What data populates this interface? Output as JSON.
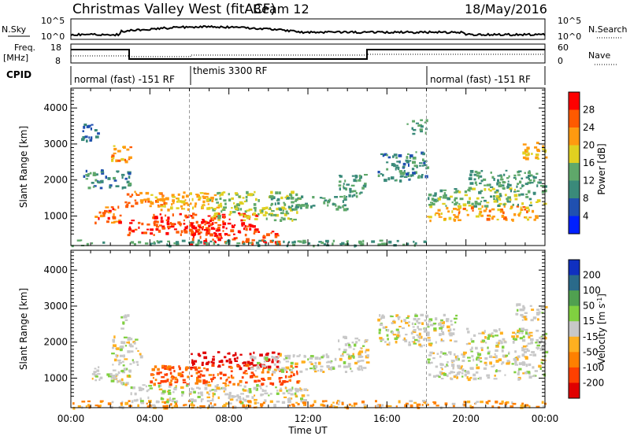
{
  "header": {
    "title": "Christmas Valley West (fitACF)",
    "beam": "Beam 12",
    "date": "18/May/2016"
  },
  "top_panel": {
    "nsky_label": "N.Sky",
    "nsearch_label": "N.Search",
    "noise_ticks": [
      "10^5",
      "10^0"
    ],
    "freq_label_1": "Freq.",
    "freq_label_2": "[MHz]",
    "freq_ticks": [
      "18",
      "8"
    ],
    "nave_label": "Nave",
    "nave_ticks": [
      "60",
      "0"
    ],
    "cpid_label": "CPID",
    "cpid_segments": [
      {
        "label": "normal (fast) -151 RF",
        "start_h": 0,
        "end_h": 6
      },
      {
        "label": "themis 3300 RF",
        "start_h": 6,
        "end_h": 18
      },
      {
        "label": "normal (fast) -151 RF",
        "start_h": 18,
        "end_h": 24
      }
    ]
  },
  "axes": {
    "xlabel": "Time UT",
    "x_ticks": [
      "00:00",
      "04:00",
      "08:00",
      "12:00",
      "16:00",
      "20:00",
      "00:00"
    ],
    "x_tick_hours": [
      0,
      4,
      8,
      12,
      16,
      20,
      24
    ],
    "ylabel": "Slant Range [km]",
    "y_ticks": [
      "1000",
      "2000",
      "3000",
      "4000"
    ],
    "y_tick_values": [
      1000,
      2000,
      3000,
      4000
    ],
    "ylim": [
      180,
      4550
    ],
    "xlim_hours": [
      0,
      24
    ]
  },
  "colorbars": {
    "power": {
      "label": "Power [dB]",
      "ticks": [
        "4",
        "8",
        "12",
        "16",
        "20",
        "24",
        "28"
      ],
      "colors": [
        "#0020ff",
        "#2050b0",
        "#3a8a7a",
        "#5fa86a",
        "#e0d020",
        "#ff9a10",
        "#ff5a00",
        "#ff0000"
      ]
    },
    "velocity": {
      "label": "Velocity [m s-1]",
      "ticks": [
        "200",
        "100",
        "50",
        "15",
        "-15",
        "-50",
        "-100",
        "-200"
      ],
      "colors": [
        "#1030c0",
        "#2a6a8a",
        "#50a050",
        "#80d040",
        "#c8c8c8",
        "#ffb020",
        "#ff8000",
        "#ff4000",
        "#e00000"
      ]
    }
  },
  "chart_data": [
    {
      "type": "heatmap",
      "panel": "power",
      "title": "Christmas Valley West (fitACF) Beam 12",
      "xlabel": "Time UT",
      "ylabel": "Slant Range [km]",
      "x_unit": "hours UT",
      "xlim": [
        0,
        24
      ],
      "ylim": [
        180,
        4550
      ],
      "colorbar_label": "Power [dB]",
      "echo_regions": [
        {
          "t0": 1.2,
          "t1": 2.5,
          "r0": 800,
          "r1": 1350,
          "value_db": 26
        },
        {
          "t0": 2.6,
          "t1": 3.1,
          "r0": 1300,
          "r1": 1700,
          "value_db": 24
        },
        {
          "t0": 3.2,
          "t1": 4.8,
          "r0": 1300,
          "r1": 1700,
          "value_db": 24
        },
        {
          "t0": 2.8,
          "t1": 7.5,
          "r0": 500,
          "r1": 900,
          "value_db": 28
        },
        {
          "t0": 4.0,
          "t1": 9.5,
          "r0": 600,
          "r1": 1100,
          "value_db": 28
        },
        {
          "t0": 6.0,
          "t1": 10.5,
          "r0": 250,
          "r1": 600,
          "value_db": 28
        },
        {
          "t0": 4.0,
          "t1": 7.5,
          "r0": 1200,
          "r1": 1700,
          "value_db": 20
        },
        {
          "t0": 7.0,
          "t1": 11.5,
          "r0": 900,
          "r1": 1700,
          "value_db": 16
        },
        {
          "t0": 10.0,
          "t1": 14.0,
          "r0": 1200,
          "r1": 1600,
          "value_db": 12
        },
        {
          "t0": 13.5,
          "t1": 15.0,
          "r0": 1500,
          "r1": 2200,
          "value_db": 12
        },
        {
          "t0": 15.5,
          "t1": 18.0,
          "r0": 2000,
          "r1": 2800,
          "value_db": 10
        },
        {
          "t0": 17.0,
          "t1": 18.0,
          "r0": 3300,
          "r1": 3700,
          "value_db": 12
        },
        {
          "t0": 18.0,
          "t1": 23.5,
          "r0": 900,
          "r1": 1300,
          "value_db": 22
        },
        {
          "t0": 18.0,
          "t1": 24.0,
          "r0": 1300,
          "r1": 1800,
          "value_db": 14
        },
        {
          "t0": 20.0,
          "t1": 24.0,
          "r0": 1800,
          "r1": 2300,
          "value_db": 12
        },
        {
          "t0": 22.8,
          "t1": 24.0,
          "r0": 2600,
          "r1": 3100,
          "value_db": 20
        },
        {
          "t0": 0.5,
          "t1": 3.0,
          "r0": 1800,
          "r1": 2300,
          "value_db": 10
        },
        {
          "t0": 0.5,
          "t1": 1.5,
          "r0": 3100,
          "r1": 3600,
          "value_db": 8
        },
        {
          "t0": 2.0,
          "t1": 3.0,
          "r0": 2500,
          "r1": 3000,
          "value_db": 22
        },
        {
          "t0": 0.0,
          "t1": 18.0,
          "r0": 200,
          "r1": 350,
          "value_db": 12
        }
      ]
    },
    {
      "type": "heatmap",
      "panel": "velocity",
      "xlabel": "Time UT",
      "ylabel": "Slant Range [km]",
      "x_unit": "hours UT",
      "xlim": [
        0,
        24
      ],
      "ylim": [
        180,
        4550
      ],
      "colorbar_label": "Velocity [m s-1]",
      "echo_regions": [
        {
          "t0": 1.0,
          "t1": 3.0,
          "r0": 800,
          "r1": 1400,
          "value_ms": 0
        },
        {
          "t0": 2.0,
          "t1": 3.5,
          "r0": 1400,
          "r1": 2200,
          "value_ms": 0
        },
        {
          "t0": 2.5,
          "t1": 3.0,
          "r0": 2400,
          "r1": 2800,
          "value_ms": 0
        },
        {
          "t0": 6.0,
          "t1": 10.5,
          "r0": 1300,
          "r1": 1750,
          "value_ms": -200
        },
        {
          "t0": 4.0,
          "t1": 11.5,
          "r0": 850,
          "r1": 1400,
          "value_ms": -80
        },
        {
          "t0": 3.0,
          "t1": 12.0,
          "r0": 350,
          "r1": 850,
          "value_ms": 0
        },
        {
          "t0": 9.0,
          "t1": 15.0,
          "r0": 1200,
          "r1": 1700,
          "value_ms": 0
        },
        {
          "t0": 13.5,
          "t1": 15.0,
          "r0": 1600,
          "r1": 2200,
          "value_ms": 0
        },
        {
          "t0": 15.5,
          "t1": 19.5,
          "r0": 1900,
          "r1": 2800,
          "value_ms": 0
        },
        {
          "t0": 18.0,
          "t1": 24.0,
          "r0": 1000,
          "r1": 1800,
          "value_ms": 0
        },
        {
          "t0": 20.0,
          "t1": 24.0,
          "r0": 1800,
          "r1": 2400,
          "value_ms": 0
        },
        {
          "t0": 22.5,
          "t1": 24.0,
          "r0": 2600,
          "r1": 3100,
          "value_ms": 0
        },
        {
          "t0": 0.0,
          "t1": 24.0,
          "r0": 200,
          "r1": 400,
          "value_ms": -30
        }
      ]
    }
  ]
}
